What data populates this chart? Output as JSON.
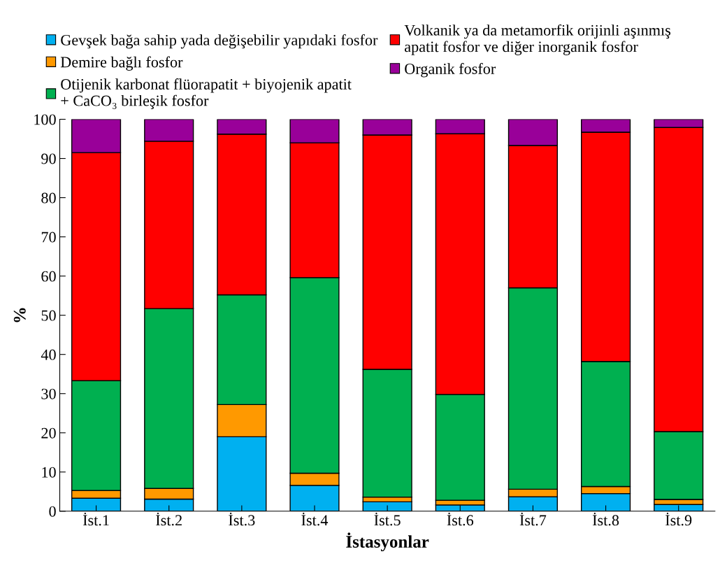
{
  "chart_data": {
    "type": "bar",
    "stacked": true,
    "xlabel": "İstasyonlar",
    "ylabel": "%",
    "categories": [
      "İst.1",
      "İst.2",
      "İst.3",
      "İst.4",
      "İst.5",
      "İst.6",
      "İst.7",
      "İst.8",
      "İst.9"
    ],
    "series": [
      {
        "name": "Gevşek bağa sahip yada değişebilir yapıdaki fosfor",
        "color": "#00b0f0",
        "values": [
          3.3,
          3.1,
          19.0,
          6.6,
          2.4,
          1.6,
          3.7,
          4.5,
          1.7
        ]
      },
      {
        "name": "Demire bağlı fosfor",
        "color": "#ff9900",
        "values": [
          2.0,
          2.7,
          8.2,
          3.1,
          1.2,
          1.2,
          1.9,
          1.8,
          1.3
        ]
      },
      {
        "name": "Otijenik karbonat flüorapatit + biyojenik apatit\n+ CaCO₃ birleşik fosfor",
        "color": "#00b050",
        "values": [
          28.0,
          45.9,
          28.0,
          49.9,
          32.6,
          27.0,
          51.4,
          31.9,
          17.3
        ]
      },
      {
        "name": "Volkanik ya da metamorfik orijinli aşınmış\napatit fosfor ve diğer inorganik fosfor",
        "color": "#ff0000",
        "values": [
          58.2,
          42.7,
          41.0,
          34.4,
          59.8,
          66.5,
          36.3,
          58.5,
          77.6
        ]
      },
      {
        "name": "Organik fosfor",
        "color": "#990099",
        "values": [
          8.5,
          5.6,
          3.8,
          6.0,
          4.0,
          3.7,
          6.7,
          3.3,
          2.1
        ]
      }
    ],
    "ylim": [
      0,
      100
    ],
    "yticks": [
      0,
      10,
      20,
      30,
      40,
      50,
      60,
      70,
      80,
      90,
      100
    ],
    "grid": false,
    "legend": "top"
  }
}
